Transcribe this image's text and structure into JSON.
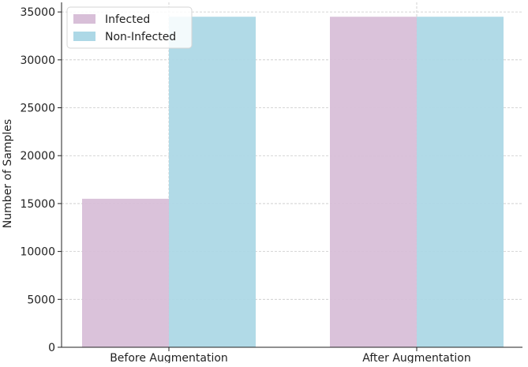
{
  "chart_data": {
    "type": "bar",
    "categories": [
      "Before Augmentation",
      "After Augmentation"
    ],
    "series": [
      {
        "name": "Infected",
        "values": [
          15500,
          34500
        ],
        "color": "#d8bfd8"
      },
      {
        "name": "Non-Infected",
        "values": [
          34500,
          34500
        ],
        "color": "#add8e6"
      }
    ],
    "ylabel": "Number of Samples",
    "xlabel": "",
    "ylim": [
      0,
      36000
    ],
    "yticks": [
      0,
      5000,
      10000,
      15000,
      20000,
      25000,
      30000,
      35000
    ],
    "ytick_labels": [
      "0",
      "5000",
      "10000",
      "15000",
      "20000",
      "25000",
      "30000",
      "35000"
    ],
    "grid": true,
    "legend_position": "top-left"
  }
}
